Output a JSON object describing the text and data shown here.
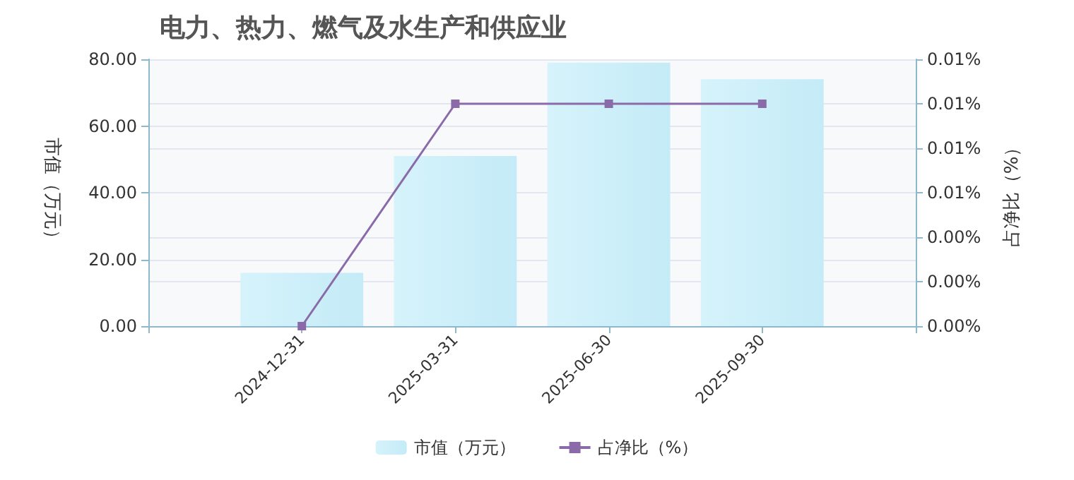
{
  "chart_data": {
    "type": "bar",
    "title": "电力、热力、燃气及水生产和供应业",
    "ylabel": "市值（万元）",
    "y2label": "占净比（%）",
    "categories": [
      "2024-12-31",
      "2025-03-31",
      "2025-06-30",
      "2025-09-30"
    ],
    "series": [
      {
        "name": "市值（万元）",
        "color": "#c4ebf7",
        "values": [
          16,
          51,
          79,
          74
        ]
      },
      {
        "name": "占净比（%）",
        "type": "line",
        "axis": "y2",
        "color": "#8a6aa8",
        "marker": "square",
        "values": [
          0,
          0.01,
          0.01,
          0.01
        ]
      }
    ],
    "ylim": [
      0,
      80
    ],
    "yticks": [
      {
        "value": 0,
        "label": "0.00"
      },
      {
        "value": 20,
        "label": "20.00"
      },
      {
        "value": 40,
        "label": "40.00"
      },
      {
        "value": 60,
        "label": "60.00"
      },
      {
        "value": 80,
        "label": "80.00"
      }
    ],
    "y2lim": [
      0,
      0.012
    ],
    "y2ticks": [
      {
        "value": 0,
        "label": "0.00%"
      },
      {
        "value": 0.002,
        "label": "0.00%"
      },
      {
        "value": 0.004,
        "label": "0.00%"
      },
      {
        "value": 0.006,
        "label": "0.01%"
      },
      {
        "value": 0.008,
        "label": "0.01%"
      },
      {
        "value": 0.01,
        "label": "0.01%"
      },
      {
        "value": 0.012,
        "label": "0.01%"
      }
    ],
    "grid": true,
    "legend": "bottom"
  }
}
